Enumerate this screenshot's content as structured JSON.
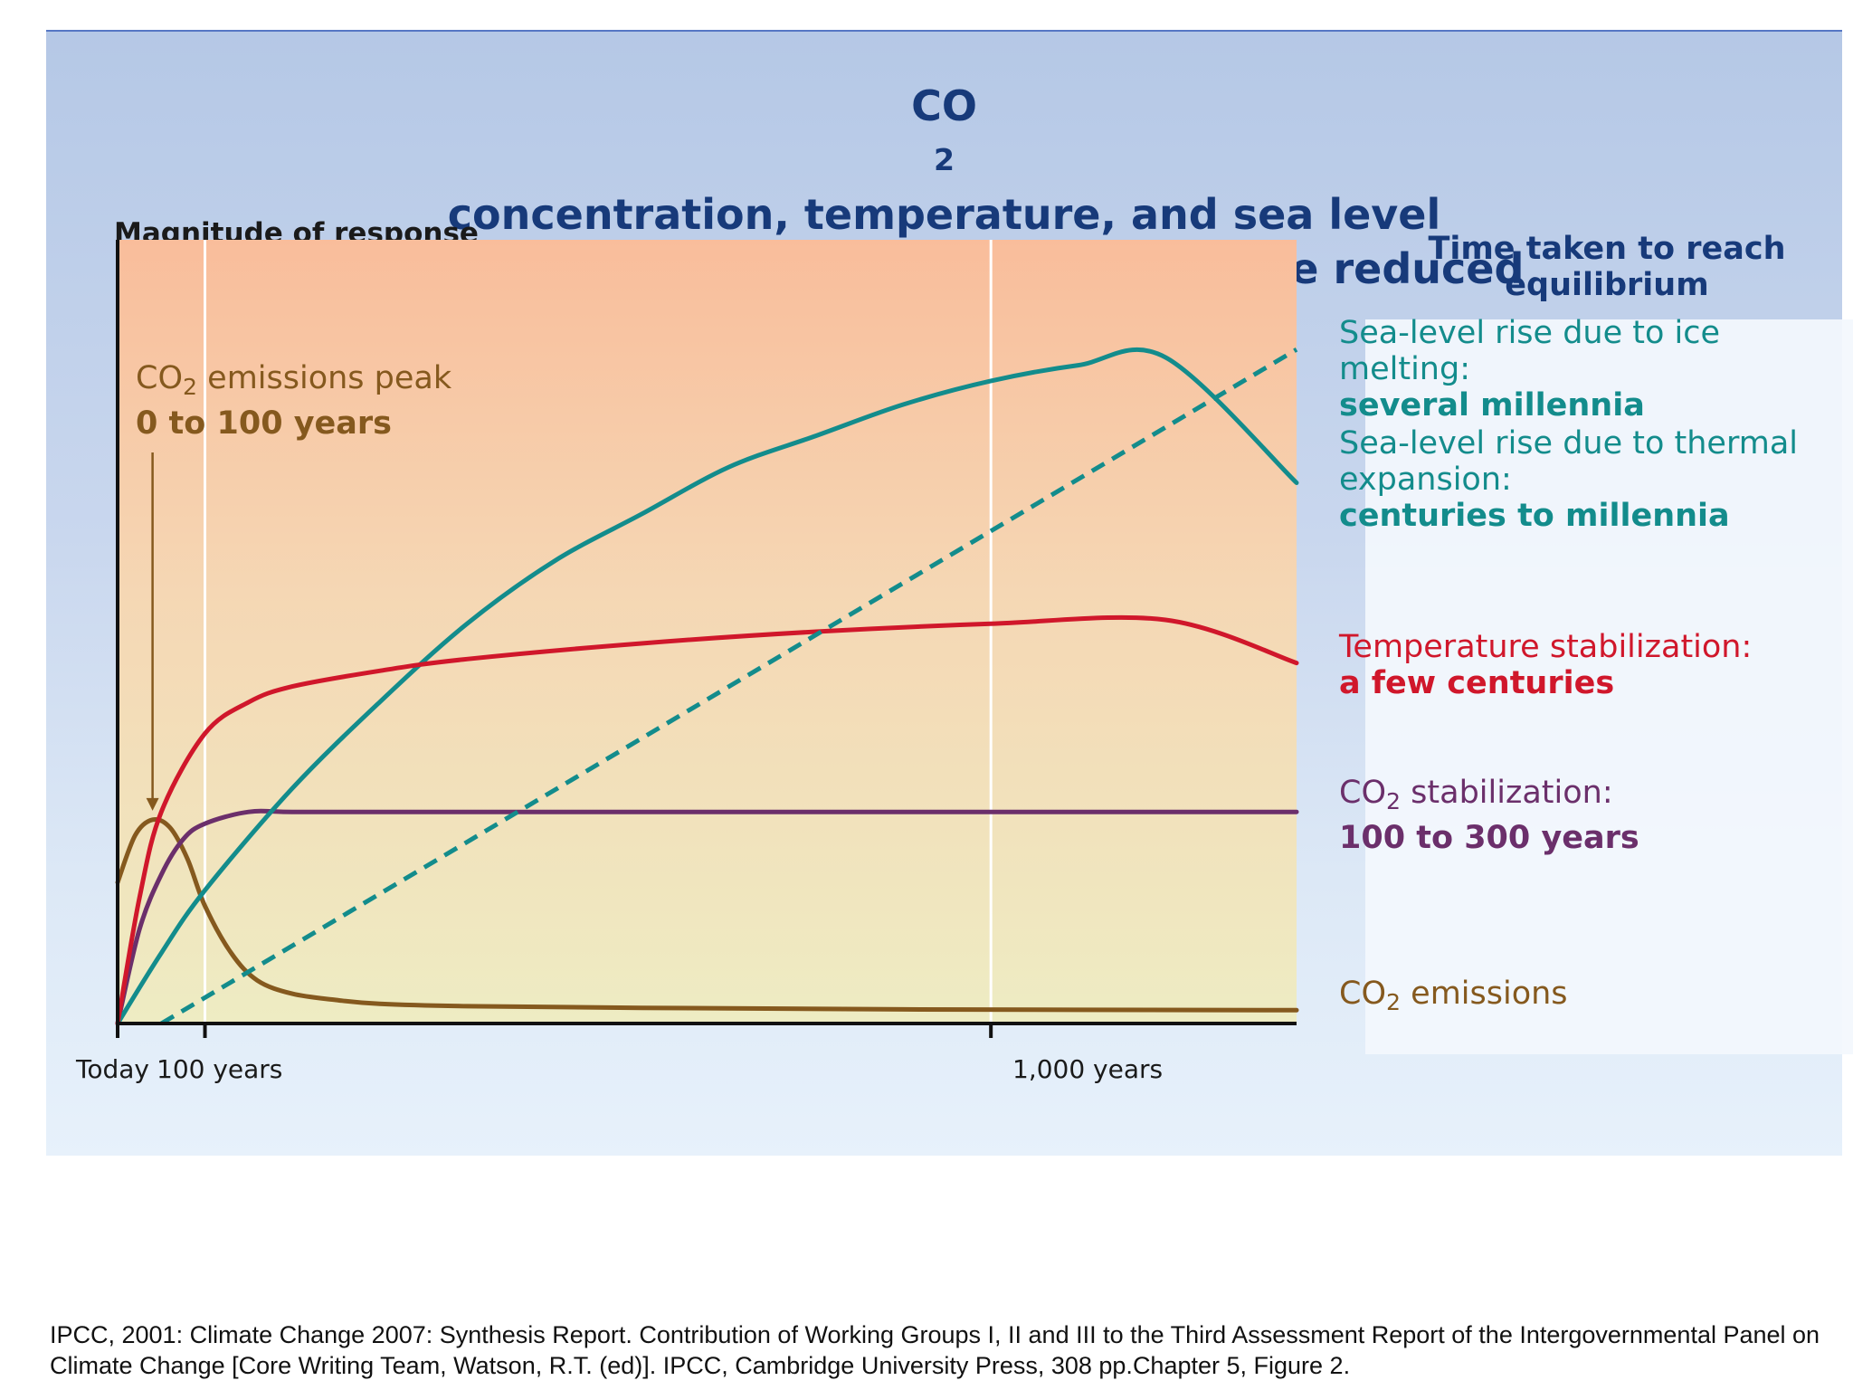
{
  "title": {
    "line1_pre": "CO",
    "line1_sub": "2",
    "line1_post": " concentration, temperature, and sea level",
    "line2": "continue to rise long after emissions are reduced"
  },
  "y_axis_label": "Magnitude of response",
  "equilibrium_title_line1": "Time taken to reach",
  "equilibrium_title_line2": "equilibrium",
  "legend": {
    "ice": {
      "name": "Sea-level rise due to ice melting:",
      "time": "several millennia"
    },
    "thermal": {
      "name_line1": "Sea-level rise due to thermal",
      "name_line2": "expansion:",
      "time": "centuries to millennia"
    },
    "temp": {
      "name": "Temperature stabilization:",
      "time": "a few centuries"
    },
    "co2stab": {
      "pre": "CO",
      "sub": "2",
      "post": " stabilization:",
      "time": "100 to 300 years"
    },
    "emissions": {
      "pre": "CO",
      "sub": "2",
      "post": " emissions"
    }
  },
  "annotation": {
    "pre": "CO",
    "sub": "2",
    "post": " emissions peak",
    "time": "0 to 100 years"
  },
  "x_ticks": {
    "today": "Today",
    "t100": "100 years",
    "t1000": "1,000  years"
  },
  "citation": "IPCC, 2001: Climate Change 2007: Synthesis Report. Contribution of Working Groups I, II and III to the Third Assessment Report of the Intergovernmental Panel on Climate Change [Core Writing Team, Watson, R.T. (ed)]. IPCC, Cambridge University Press, 308 pp.Chapter 5, Figure 2.",
  "colors": {
    "teal": "#138c8c",
    "red": "#d0172b",
    "purple": "#6b2f6b",
    "brown": "#85591e",
    "title": "#173a7a"
  },
  "chart_data": {
    "type": "line",
    "xlabel": "",
    "ylabel": "Magnitude of response",
    "xlim": [
      0,
      1350
    ],
    "ylim": [
      0,
      100
    ],
    "x_tick_values": [
      0,
      100,
      1000
    ],
    "series": [
      {
        "key": "ice",
        "name": "Sea-level rise due to ice melting",
        "style": "dashed",
        "color": "#138c8c",
        "x": [
          50,
          1350
        ],
        "y": [
          0,
          86
        ]
      },
      {
        "key": "thermal",
        "name": "Sea-level rise due to thermal expansion",
        "style": "solid",
        "color": "#138c8c",
        "x": [
          0,
          50,
          100,
          200,
          300,
          400,
          500,
          600,
          700,
          800,
          900,
          1000,
          1100,
          1200,
          1350
        ],
        "y": [
          0,
          9,
          17,
          30,
          41,
          51,
          59,
          65,
          71,
          75,
          79,
          82,
          84,
          85,
          69
        ]
      },
      {
        "key": "temp",
        "name": "Temperature stabilization",
        "style": "solid",
        "color": "#d0172b",
        "x": [
          0,
          25,
          50,
          100,
          150,
          200,
          300,
          400,
          600,
          800,
          1000,
          1200,
          1350
        ],
        "y": [
          0,
          16,
          27,
          37,
          41,
          43,
          45,
          46.5,
          48.5,
          50,
          51,
          51.5,
          46
        ]
      },
      {
        "key": "co2stab",
        "name": "CO2 stabilization",
        "style": "solid",
        "color": "#6b2f6b",
        "x": [
          0,
          25,
          50,
          75,
          100,
          150,
          200,
          300,
          500,
          800,
          1350
        ],
        "y": [
          0,
          12,
          19,
          23.5,
          25.5,
          27,
          27,
          27,
          27,
          27,
          27
        ]
      },
      {
        "key": "emissions",
        "name": "CO2 emissions",
        "style": "solid",
        "color": "#85591e",
        "x": [
          0,
          20,
          40,
          60,
          80,
          100,
          130,
          160,
          200,
          250,
          300,
          400,
          600,
          900,
          1350
        ],
        "y": [
          18,
          24,
          26,
          25,
          21,
          15,
          9,
          5.5,
          3.8,
          3,
          2.5,
          2.2,
          2,
          1.8,
          1.7
        ]
      }
    ]
  }
}
